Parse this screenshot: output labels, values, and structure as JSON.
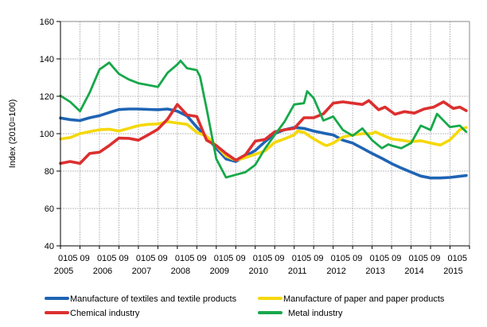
{
  "chart_data": {
    "type": "line",
    "title": "",
    "xlabel": "",
    "ylabel": "Index (2010=100)",
    "ylim": [
      40,
      160
    ],
    "yticks": [
      40,
      60,
      80,
      100,
      120,
      140,
      160
    ],
    "xlim": [
      "2005-01",
      "2015-06"
    ],
    "x_month_labels": [
      "01",
      "05",
      "09"
    ],
    "x_year_labels": [
      "2005",
      "2006",
      "2007",
      "2008",
      "2009",
      "2010",
      "2011",
      "2012",
      "2013",
      "2014",
      "2015"
    ],
    "grid": true,
    "legend_position": "bottom",
    "series": [
      {
        "name": "Manufacture of textiles and textile products",
        "color": "#1f64b4",
        "points": [
          [
            "2005-01",
            108.4
          ],
          [
            "2005-04",
            107.5
          ],
          [
            "2005-07",
            107
          ],
          [
            "2005-10",
            108.5
          ],
          [
            "2006-01",
            109.6
          ],
          [
            "2006-04",
            111.3
          ],
          [
            "2006-07",
            112.9
          ],
          [
            "2006-10",
            113.2
          ],
          [
            "2007-01",
            113.2
          ],
          [
            "2007-04",
            113
          ],
          [
            "2007-07",
            112.8
          ],
          [
            "2007-10",
            113.2
          ],
          [
            "2008-01",
            112
          ],
          [
            "2008-04",
            109.5
          ],
          [
            "2008-07",
            103.5
          ],
          [
            "2008-10",
            98.2
          ],
          [
            "2009-01",
            92.2
          ],
          [
            "2009-04",
            86.5
          ],
          [
            "2009-07",
            85.1
          ],
          [
            "2009-10",
            88
          ],
          [
            "2010-01",
            91
          ],
          [
            "2010-04",
            95.7
          ],
          [
            "2010-07",
            100
          ],
          [
            "2010-10",
            102.1
          ],
          [
            "2011-01",
            103.3
          ],
          [
            "2011-04",
            102.8
          ],
          [
            "2011-07",
            101.4
          ],
          [
            "2011-10",
            100.3
          ],
          [
            "2012-01",
            99.3
          ],
          [
            "2012-04",
            96.5
          ],
          [
            "2012-07",
            95
          ],
          [
            "2012-10",
            92.2
          ],
          [
            "2013-01",
            89.4
          ],
          [
            "2013-04",
            86.8
          ],
          [
            "2013-07",
            84
          ],
          [
            "2013-10",
            81.6
          ],
          [
            "2014-01",
            79.4
          ],
          [
            "2014-04",
            77.3
          ],
          [
            "2014-07",
            76.3
          ],
          [
            "2014-10",
            76.3
          ],
          [
            "2015-01",
            76.6
          ],
          [
            "2015-04",
            77.2
          ],
          [
            "2015-06",
            77.6
          ]
        ]
      },
      {
        "name": "Manufacture of paper and paper products",
        "color": "#f5d80a",
        "points": [
          [
            "2005-01",
            97.2
          ],
          [
            "2005-04",
            97.9
          ],
          [
            "2005-07",
            100
          ],
          [
            "2005-10",
            101.1
          ],
          [
            "2006-01",
            102.1
          ],
          [
            "2006-04",
            102.4
          ],
          [
            "2006-07",
            101.4
          ],
          [
            "2006-10",
            102.8
          ],
          [
            "2007-01",
            104.3
          ],
          [
            "2007-04",
            105
          ],
          [
            "2007-07",
            105.2
          ],
          [
            "2007-10",
            106.4
          ],
          [
            "2008-01",
            105.7
          ],
          [
            "2008-04",
            105
          ],
          [
            "2008-07",
            100.7
          ],
          [
            "2008-10",
            98.6
          ],
          [
            "2009-01",
            93.6
          ],
          [
            "2009-04",
            88
          ],
          [
            "2009-07",
            85.8
          ],
          [
            "2009-10",
            87.2
          ],
          [
            "2010-01",
            89
          ],
          [
            "2010-04",
            90.8
          ],
          [
            "2010-07",
            95.3
          ],
          [
            "2010-10",
            97.2
          ],
          [
            "2011-01",
            99.3
          ],
          [
            "2011-02",
            101.4
          ],
          [
            "2011-04",
            100.7
          ],
          [
            "2011-07",
            97.2
          ],
          [
            "2011-10",
            94.3
          ],
          [
            "2011-11",
            93.6
          ],
          [
            "2012-01",
            95
          ],
          [
            "2012-04",
            98.2
          ],
          [
            "2012-07",
            99.3
          ],
          [
            "2012-10",
            100
          ],
          [
            "2013-01",
            100
          ],
          [
            "2013-02",
            101
          ],
          [
            "2013-04",
            99.3
          ],
          [
            "2013-07",
            97.2
          ],
          [
            "2013-10",
            96.5
          ],
          [
            "2014-01",
            95.7
          ],
          [
            "2014-04",
            96.2
          ],
          [
            "2014-07",
            95
          ],
          [
            "2014-10",
            93.9
          ],
          [
            "2015-01",
            96.7
          ],
          [
            "2015-04",
            102.1
          ],
          [
            "2015-06",
            103.3
          ]
        ]
      },
      {
        "name": "Chemical industry",
        "color": "#dc2f2f",
        "points": [
          [
            "2005-01",
            84.1
          ],
          [
            "2005-04",
            85.1
          ],
          [
            "2005-07",
            84.1
          ],
          [
            "2005-10",
            89.4
          ],
          [
            "2006-01",
            90.1
          ],
          [
            "2006-04",
            93.6
          ],
          [
            "2006-07",
            97.6
          ],
          [
            "2006-10",
            97.5
          ],
          [
            "2007-01",
            96.5
          ],
          [
            "2007-04",
            99.3
          ],
          [
            "2007-07",
            102.4
          ],
          [
            "2007-10",
            107.8
          ],
          [
            "2008-01",
            115.6
          ],
          [
            "2008-04",
            110
          ],
          [
            "2008-07",
            109.2
          ],
          [
            "2008-08",
            105
          ],
          [
            "2008-10",
            96.5
          ],
          [
            "2009-01",
            93.6
          ],
          [
            "2009-04",
            89.4
          ],
          [
            "2009-07",
            85.8
          ],
          [
            "2009-10",
            88.7
          ],
          [
            "2010-01",
            96
          ],
          [
            "2010-04",
            96.9
          ],
          [
            "2010-07",
            101
          ],
          [
            "2010-10",
            102.1
          ],
          [
            "2011-01",
            102.8
          ],
          [
            "2011-04",
            108.5
          ],
          [
            "2011-07",
            108.5
          ],
          [
            "2011-10",
            110.6
          ],
          [
            "2012-01",
            116.3
          ],
          [
            "2012-04",
            117
          ],
          [
            "2012-07",
            116.3
          ],
          [
            "2012-10",
            115.6
          ],
          [
            "2012-12",
            117.7
          ],
          [
            "2013-03",
            112.8
          ],
          [
            "2013-05",
            114.2
          ],
          [
            "2013-08",
            110.4
          ],
          [
            "2013-11",
            111.8
          ],
          [
            "2014-02",
            111
          ],
          [
            "2014-05",
            113.2
          ],
          [
            "2014-08",
            114.2
          ],
          [
            "2014-11",
            117
          ],
          [
            "2015-02",
            113.5
          ],
          [
            "2015-04",
            114.2
          ],
          [
            "2015-06",
            112.3
          ]
        ]
      },
      {
        "name": "Metal industry",
        "color": "#17a84a",
        "points": [
          [
            "2005-01",
            120.3
          ],
          [
            "2005-04",
            117
          ],
          [
            "2005-07",
            112
          ],
          [
            "2005-10",
            122
          ],
          [
            "2006-01",
            134.3
          ],
          [
            "2006-04",
            138
          ],
          [
            "2006-07",
            132
          ],
          [
            "2006-10",
            129
          ],
          [
            "2007-01",
            127
          ],
          [
            "2007-04",
            126
          ],
          [
            "2007-07",
            125
          ],
          [
            "2007-10",
            132.6
          ],
          [
            "2008-01",
            137
          ],
          [
            "2008-02",
            139
          ],
          [
            "2008-04",
            135
          ],
          [
            "2008-07",
            134
          ],
          [
            "2008-08",
            130.5
          ],
          [
            "2008-10",
            113.5
          ],
          [
            "2009-01",
            86.5
          ],
          [
            "2009-04",
            76.6
          ],
          [
            "2009-07",
            78
          ],
          [
            "2009-10",
            79.4
          ],
          [
            "2010-01",
            83.3
          ],
          [
            "2010-04",
            92
          ],
          [
            "2010-07",
            99.3
          ],
          [
            "2010-10",
            106.4
          ],
          [
            "2011-01",
            115.6
          ],
          [
            "2011-04",
            116.3
          ],
          [
            "2011-05",
            122.7
          ],
          [
            "2011-07",
            119
          ],
          [
            "2011-10",
            107
          ],
          [
            "2012-01",
            109.2
          ],
          [
            "2012-04",
            102
          ],
          [
            "2012-07",
            98.9
          ],
          [
            "2012-10",
            102.8
          ],
          [
            "2013-01",
            96.5
          ],
          [
            "2013-04",
            92.2
          ],
          [
            "2013-06",
            94.3
          ],
          [
            "2013-07",
            93.6
          ],
          [
            "2013-10",
            92.2
          ],
          [
            "2014-01",
            95
          ],
          [
            "2014-04",
            104.3
          ],
          [
            "2014-07",
            102
          ],
          [
            "2014-09",
            110.6
          ],
          [
            "2015-01",
            103.5
          ],
          [
            "2015-04",
            104.3
          ],
          [
            "2015-06",
            101
          ]
        ]
      }
    ]
  }
}
